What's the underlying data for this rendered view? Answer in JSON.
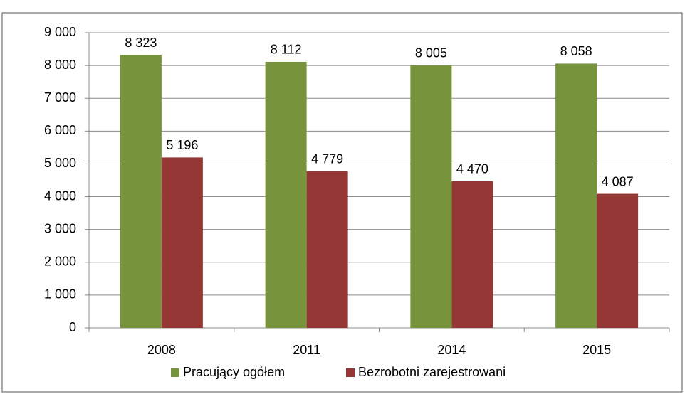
{
  "chart_data": {
    "type": "bar",
    "categories": [
      "2008",
      "2011",
      "2014",
      "2015"
    ],
    "series": [
      {
        "name": "Pracujący ogółem",
        "color": "#77933c",
        "values": [
          8323,
          8112,
          8005,
          8058
        ],
        "value_labels": [
          "8 323",
          "8 112",
          "8 005",
          "8 058"
        ]
      },
      {
        "name": "Bezrobotni zarejestrowani",
        "color": "#953735",
        "values": [
          5196,
          4779,
          4470,
          4087
        ],
        "value_labels": [
          "5 196",
          "4 779",
          "4 470",
          "4 087"
        ]
      }
    ],
    "ylim": [
      0,
      9000
    ],
    "yticks": [
      0,
      {
        "value": 1000,
        "label": "1 000"
      },
      {
        "value": 2000,
        "label": "2 000"
      },
      {
        "value": 3000,
        "label": "3 000"
      },
      {
        "value": 4000,
        "label": "4 000"
      },
      {
        "value": 5000,
        "label": "5 000"
      },
      {
        "value": 6000,
        "label": "6 000"
      },
      {
        "value": 7000,
        "label": "7 000"
      },
      {
        "value": 8000,
        "label": "8 000"
      },
      {
        "value": 9000,
        "label": "9 000"
      }
    ],
    "grid": true,
    "legend": "bottom"
  }
}
